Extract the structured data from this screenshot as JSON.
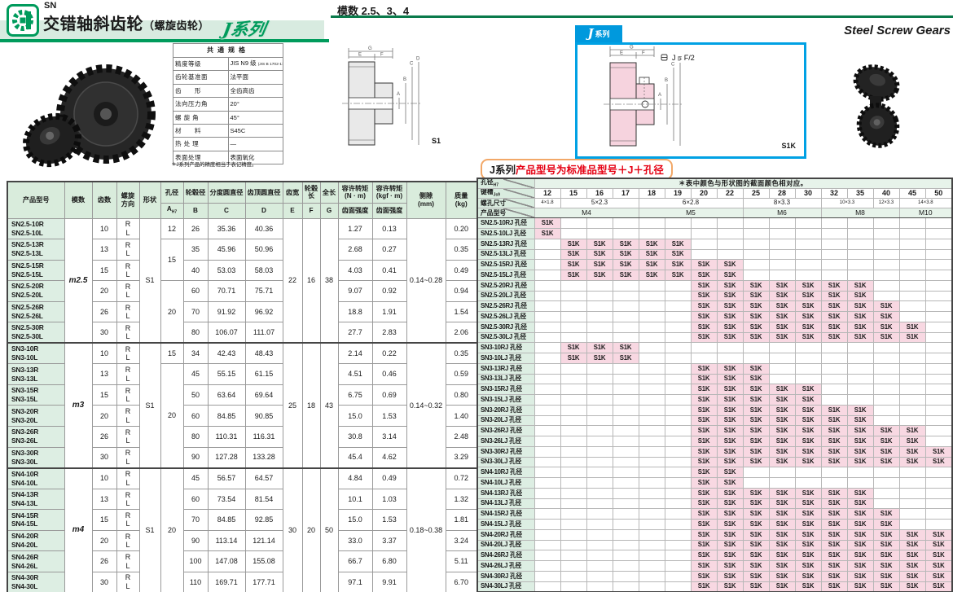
{
  "page": {
    "logo_sub": "SN",
    "title": "交错轴斜齿轮",
    "title_sub": "（螺旋齿轮）",
    "series_logo": "J系列",
    "module_note": "模数 2.5、3、4",
    "title_en": "Steel Screw Gears",
    "badge_j": "J",
    "badge_series": "系列",
    "accent_green": "#009b5c",
    "accent_blue": "#0099dd",
    "accent_pink": "#f8d8e2",
    "accent_red": "#e50012"
  },
  "specs": {
    "title": "共通规格",
    "rows": [
      {
        "label": "精度等级",
        "value": "JIS N9 级",
        "value_small": "(JIS B 1702-1:1998)"
      },
      {
        "label": "齿轮基准面",
        "value": "法平面",
        "value_small": ""
      },
      {
        "label": "齿　　形",
        "value": "全齿高齿",
        "value_small": ""
      },
      {
        "label": "法向压力角",
        "value": "20°",
        "value_small": ""
      },
      {
        "label": "螺 旋 角",
        "value": "45°",
        "value_small": ""
      },
      {
        "label": "材　　料",
        "value": "S45C",
        "value_small": ""
      },
      {
        "label": "热 处 理",
        "value": "—",
        "value_small": ""
      },
      {
        "label": "表面处理",
        "value": "表面氧化",
        "value_small": ""
      }
    ],
    "footnote": "＊J系列产品的精度相当于表记精度。"
  },
  "drawings": {
    "s1": "S1",
    "s1k": "S1K",
    "j_note": "J = F/2",
    "dim_g": "G",
    "dim_e": "E",
    "dim_f": "F",
    "dim_a": "A",
    "dim_b": "B",
    "dim_c": "C",
    "dim_d": "D"
  },
  "j_table": {
    "title_prefix": "J系列",
    "title_red": "产品型号为标准品型号＋J＋孔径",
    "note": "＊表中颜色与形状图的截面颜色相对应。",
    "label_bore": "孔径",
    "label_bore_sub": "H7",
    "label_keyway": "键槽",
    "label_keyway_sub": "Js9",
    "label_tap": "螺孔尺寸",
    "label_product": "产品型号",
    "cell_text": "S1K",
    "bores": [
      "12",
      "15",
      "16",
      "17",
      "18",
      "19",
      "20",
      "22",
      "25",
      "28",
      "30",
      "32",
      "35",
      "40",
      "45",
      "50"
    ],
    "keyways": [
      {
        "label": "4×1.8",
        "span": 1
      },
      {
        "label": "5×2.3",
        "span": 3
      },
      {
        "label": "6×2.8",
        "span": 4
      },
      {
        "label": "8×3.3",
        "span": 3
      },
      {
        "label": "10×3.3",
        "span": 2
      },
      {
        "label": "12×3.3",
        "span": 1
      },
      {
        "label": "14×3.8",
        "span": 2
      }
    ],
    "taps": [
      {
        "label": "M4",
        "span": 4
      },
      {
        "label": "M5",
        "span": 4
      },
      {
        "label": "M6",
        "span": 3
      },
      {
        "label": "M8",
        "span": 3
      },
      {
        "label": "M10",
        "span": 2
      }
    ],
    "pairs": [
      {
        "r": "SN2.5-10RJ 孔径",
        "l": "SN2.5-10LJ 孔径",
        "bores": [
          "12"
        ]
      },
      {
        "r": "SN2.5-13RJ 孔径",
        "l": "SN2.5-13LJ 孔径",
        "bores": [
          "15",
          "16",
          "17",
          "18",
          "19"
        ]
      },
      {
        "r": "SN2.5-15RJ 孔径",
        "l": "SN2.5-15LJ 孔径",
        "bores": [
          "15",
          "16",
          "17",
          "18",
          "19",
          "20",
          "22"
        ]
      },
      {
        "r": "SN2.5-20RJ 孔径",
        "l": "SN2.5-20LJ 孔径",
        "bores": [
          "20",
          "22",
          "25",
          "28",
          "30",
          "32",
          "35"
        ]
      },
      {
        "r": "SN2.5-26RJ 孔径",
        "l": "SN2.5-26LJ 孔径",
        "bores": [
          "20",
          "22",
          "25",
          "28",
          "30",
          "32",
          "35",
          "40"
        ]
      },
      {
        "r": "SN2.5-30RJ 孔径",
        "l": "SN2.5-30LJ 孔径",
        "bores": [
          "20",
          "22",
          "25",
          "28",
          "30",
          "32",
          "35",
          "40",
          "45"
        ]
      },
      {
        "r": "SN3-10RJ 孔径",
        "l": "SN3-10LJ 孔径",
        "bores": [
          "15",
          "16",
          "17"
        ]
      },
      {
        "r": "SN3-13RJ 孔径",
        "l": "SN3-13LJ 孔径",
        "bores": [
          "20",
          "22",
          "25"
        ]
      },
      {
        "r": "SN3-15RJ 孔径",
        "l": "SN3-15LJ 孔径",
        "bores": [
          "20",
          "22",
          "25",
          "28",
          "30"
        ]
      },
      {
        "r": "SN3-20RJ 孔径",
        "l": "SN3-20LJ 孔径",
        "bores": [
          "20",
          "22",
          "25",
          "28",
          "30",
          "32",
          "35"
        ]
      },
      {
        "r": "SN3-26RJ 孔径",
        "l": "SN3-26LJ 孔径",
        "bores": [
          "20",
          "22",
          "25",
          "28",
          "30",
          "32",
          "35",
          "40",
          "45"
        ]
      },
      {
        "r": "SN3-30RJ 孔径",
        "l": "SN3-30LJ 孔径",
        "bores": [
          "20",
          "22",
          "25",
          "28",
          "30",
          "32",
          "35",
          "40",
          "45",
          "50"
        ]
      },
      {
        "r": "SN4-10RJ 孔径",
        "l": "SN4-10LJ 孔径",
        "bores": [
          "20",
          "22"
        ]
      },
      {
        "r": "SN4-13RJ 孔径",
        "l": "SN4-13LJ 孔径",
        "bores": [
          "20",
          "22",
          "25",
          "28",
          "30",
          "32",
          "35"
        ]
      },
      {
        "r": "SN4-15RJ 孔径",
        "l": "SN4-15LJ 孔径",
        "bores": [
          "20",
          "22",
          "25",
          "28",
          "30",
          "32",
          "35",
          "40"
        ]
      },
      {
        "r": "SN4-20RJ 孔径",
        "l": "SN4-20LJ 孔径",
        "bores": [
          "20",
          "22",
          "25",
          "28",
          "30",
          "32",
          "35",
          "40",
          "45",
          "50"
        ]
      },
      {
        "r": "SN4-26RJ 孔径",
        "l": "SN4-26LJ 孔径",
        "bores": [
          "20",
          "22",
          "25",
          "28",
          "30",
          "32",
          "35",
          "40",
          "45",
          "50"
        ]
      },
      {
        "r": "SN4-30RJ 孔径",
        "l": "SN4-30LJ 孔径",
        "bores": [
          "20",
          "22",
          "25",
          "28",
          "30",
          "32",
          "35",
          "40",
          "45",
          "50"
        ]
      }
    ]
  },
  "main_table": {
    "helix_r": "R",
    "helix_l": "L",
    "headers": {
      "product": "产品型号",
      "module": "模数",
      "teeth": "齿数",
      "helix_1": "螺旋",
      "helix_2": "方向",
      "shape": "形状",
      "bore": "孔径",
      "bore_sym": "A",
      "bore_sub": "H7",
      "hub": "轮毂径",
      "hub_sym": "B",
      "pitch": "分度圆直径",
      "pitch_sym": "C",
      "tip": "齿顶圆直径",
      "tip_sym": "D",
      "face": "齿宽",
      "face_sym": "E",
      "hublen": "轮毂长",
      "hublen_sym": "F",
      "total": "全长",
      "total_sym": "G",
      "torque": "容许转矩",
      "torque_nm_u": "(N · m)",
      "torque_kgf_u": "(kgf · m)",
      "strength": "齿面强度",
      "backlash_1": "侧隙",
      "backlash_2": "(mm)",
      "mass_1": "质量",
      "mass_2": "(kg)"
    },
    "sections": [
      {
        "module": "m2.5",
        "shape": "S1",
        "e": "22",
        "f": "16",
        "g": "38",
        "backlash": "0.14~0.28",
        "bores": [
          {
            "v": "12",
            "span": 1
          },
          {
            "v": "15",
            "span": 2
          },
          {
            "v": "20",
            "span": 3
          }
        ],
        "rows": [
          {
            "r": "SN2.5-10R",
            "l": "SN2.5-10L",
            "teeth": "10",
            "hub": "26",
            "c": "35.36",
            "d": "40.36",
            "nm": "1.27",
            "kgf": "0.13",
            "mass": "0.20"
          },
          {
            "r": "SN2.5-13R",
            "l": "SN2.5-13L",
            "teeth": "13",
            "hub": "35",
            "c": "45.96",
            "d": "50.96",
            "nm": "2.68",
            "kgf": "0.27",
            "mass": "0.35"
          },
          {
            "r": "SN2.5-15R",
            "l": "SN2.5-15L",
            "teeth": "15",
            "hub": "40",
            "c": "53.03",
            "d": "58.03",
            "nm": "4.03",
            "kgf": "0.41",
            "mass": "0.49"
          },
          {
            "r": "SN2.5-20R",
            "l": "SN2.5-20L",
            "teeth": "20",
            "hub": "60",
            "c": "70.71",
            "d": "75.71",
            "nm": "9.07",
            "kgf": "0.92",
            "mass": "0.94"
          },
          {
            "r": "SN2.5-26R",
            "l": "SN2.5-26L",
            "teeth": "26",
            "hub": "70",
            "c": "91.92",
            "d": "96.92",
            "nm": "18.8",
            "kgf": "1.91",
            "mass": "1.54"
          },
          {
            "r": "SN2.5-30R",
            "l": "SN2.5-30L",
            "teeth": "30",
            "hub": "80",
            "c": "106.07",
            "d": "111.07",
            "nm": "27.7",
            "kgf": "2.83",
            "mass": "2.06"
          }
        ]
      },
      {
        "module": "m3",
        "shape": "S1",
        "e": "25",
        "f": "18",
        "g": "43",
        "backlash": "0.14~0.32",
        "bores": [
          {
            "v": "15",
            "span": 1
          },
          {
            "v": "20",
            "span": 5
          }
        ],
        "rows": [
          {
            "r": "SN3-10R",
            "l": "SN3-10L",
            "teeth": "10",
            "hub": "34",
            "c": "42.43",
            "d": "48.43",
            "nm": "2.14",
            "kgf": "0.22",
            "mass": "0.35"
          },
          {
            "r": "SN3-13R",
            "l": "SN3-13L",
            "teeth": "13",
            "hub": "45",
            "c": "55.15",
            "d": "61.15",
            "nm": "4.51",
            "kgf": "0.46",
            "mass": "0.59"
          },
          {
            "r": "SN3-15R",
            "l": "SN3-15L",
            "teeth": "15",
            "hub": "50",
            "c": "63.64",
            "d": "69.64",
            "nm": "6.75",
            "kgf": "0.69",
            "mass": "0.80"
          },
          {
            "r": "SN3-20R",
            "l": "SN3-20L",
            "teeth": "20",
            "hub": "60",
            "c": "84.85",
            "d": "90.85",
            "nm": "15.0",
            "kgf": "1.53",
            "mass": "1.40"
          },
          {
            "r": "SN3-26R",
            "l": "SN3-26L",
            "teeth": "26",
            "hub": "80",
            "c": "110.31",
            "d": "116.31",
            "nm": "30.8",
            "kgf": "3.14",
            "mass": "2.48"
          },
          {
            "r": "SN3-30R",
            "l": "SN3-30L",
            "teeth": "30",
            "hub": "90",
            "c": "127.28",
            "d": "133.28",
            "nm": "45.4",
            "kgf": "4.62",
            "mass": "3.29"
          }
        ]
      },
      {
        "module": "m4",
        "shape": "S1",
        "e": "30",
        "f": "20",
        "g": "50",
        "backlash": "0.18~0.38",
        "bores": [
          {
            "v": "20",
            "span": 6
          }
        ],
        "rows": [
          {
            "r": "SN4-10R",
            "l": "SN4-10L",
            "teeth": "10",
            "hub": "45",
            "c": "56.57",
            "d": "64.57",
            "nm": "4.84",
            "kgf": "0.49",
            "mass": "0.72"
          },
          {
            "r": "SN4-13R",
            "l": "SN4-13L",
            "teeth": "13",
            "hub": "60",
            "c": "73.54",
            "d": "81.54",
            "nm": "10.1",
            "kgf": "1.03",
            "mass": "1.32"
          },
          {
            "r": "SN4-15R",
            "l": "SN4-15L",
            "teeth": "15",
            "hub": "70",
            "c": "84.85",
            "d": "92.85",
            "nm": "15.0",
            "kgf": "1.53",
            "mass": "1.81"
          },
          {
            "r": "SN4-20R",
            "l": "SN4-20L",
            "teeth": "20",
            "hub": "90",
            "c": "113.14",
            "d": "121.14",
            "nm": "33.0",
            "kgf": "3.37",
            "mass": "3.24"
          },
          {
            "r": "SN4-26R",
            "l": "SN4-26L",
            "teeth": "26",
            "hub": "100",
            "c": "147.08",
            "d": "155.08",
            "nm": "66.7",
            "kgf": "6.80",
            "mass": "5.11"
          },
          {
            "r": "SN4-30R",
            "l": "SN4-30L",
            "teeth": "30",
            "hub": "110",
            "c": "169.71",
            "d": "177.71",
            "nm": "97.1",
            "kgf": "9.91",
            "mass": "6.70"
          }
        ]
      }
    ]
  }
}
